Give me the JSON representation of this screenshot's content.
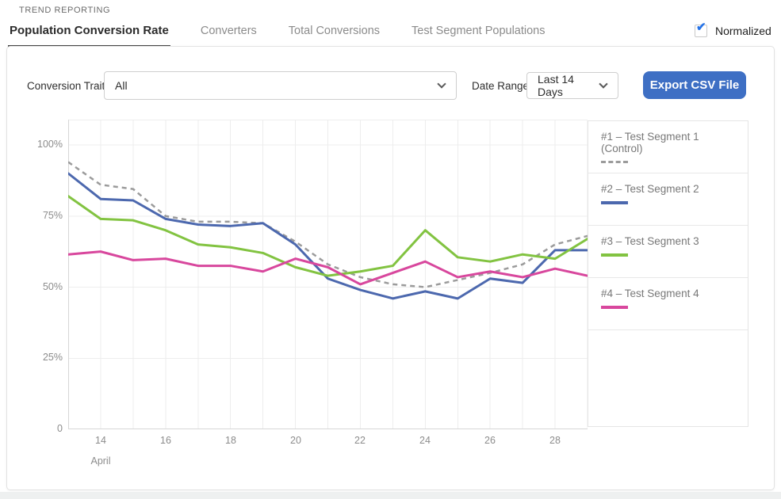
{
  "page": {
    "eyebrow": "TREND REPORTING"
  },
  "tabs": [
    {
      "label": "Population Conversion Rate",
      "active": true
    },
    {
      "label": "Converters",
      "active": false
    },
    {
      "label": "Total Conversions",
      "active": false
    },
    {
      "label": "Test Segment Populations",
      "active": false
    }
  ],
  "normalized": {
    "label": "Normalized",
    "checked": true,
    "check_glyph": "✔"
  },
  "filters": {
    "conversion_trait": {
      "label": "Conversion Trait",
      "value": "All"
    },
    "date_range": {
      "label": "Date Range",
      "value": "Last 14 Days"
    },
    "export_button_label": "Export CSV File"
  },
  "colors": {
    "export_button_blue": "#3e6fc4",
    "checkbox_check_blue": "#2573e8",
    "active_tab_underline": "#464646",
    "grid_line": "#ededed",
    "axis_line": "#d7d7d7",
    "segment1_gray": "#9b9b9b",
    "segment2_blue": "#4c68ae",
    "segment3_green": "#82c341",
    "segment4_pink": "#d8479d"
  },
  "chart_data": {
    "type": "line",
    "title": "",
    "xlabel": "April",
    "ylabel": "",
    "y_unit": "%",
    "ylim": [
      0,
      109
    ],
    "xlim": [
      13,
      29
    ],
    "grid": true,
    "legend_position": "right",
    "x_days": [
      13,
      14,
      15,
      16,
      17,
      18,
      19,
      20,
      21,
      22,
      23,
      24,
      25,
      26,
      27,
      28,
      29
    ],
    "x_tick_labels": [
      "14",
      "16",
      "18",
      "20",
      "22",
      "24",
      "26",
      "28"
    ],
    "y_tick_labels": [
      "100%",
      "75%",
      "50%",
      "25%",
      "0"
    ],
    "month_label": "April",
    "series": [
      {
        "name": "Test Segment 1 (Control)",
        "legend_label": "#1 – Test Segment 1  (Control)",
        "color": "#9b9b9b",
        "dashed": true,
        "values": [
          94,
          86,
          84.5,
          75,
          73,
          73,
          72.5,
          66,
          58,
          53.5,
          51,
          50,
          52.5,
          55,
          58,
          65,
          68
        ]
      },
      {
        "name": "Test Segment 2",
        "legend_label": "#2 – Test Segment 2",
        "color": "#4c68ae",
        "dashed": false,
        "values": [
          90,
          81,
          80.5,
          74,
          72,
          71.5,
          72.5,
          65,
          53,
          49,
          46,
          48.5,
          46,
          53,
          51.5,
          63,
          63
        ]
      },
      {
        "name": "Test Segment 3",
        "legend_label": "#3 – Test Segment 3",
        "color": "#82c341",
        "dashed": false,
        "values": [
          82,
          74,
          73.5,
          70,
          65,
          64,
          62,
          57,
          54,
          55.5,
          57.5,
          70,
          60.5,
          59,
          61.5,
          60,
          67
        ]
      },
      {
        "name": "Test Segment 4",
        "legend_label": "#4 – Test Segment 4",
        "color": "#d8479d",
        "dashed": false,
        "values": [
          61.5,
          62.5,
          59.5,
          60,
          57.5,
          57.5,
          55.5,
          60,
          57,
          51,
          55,
          59,
          53.5,
          55.5,
          53.5,
          56.5,
          54
        ]
      }
    ]
  }
}
